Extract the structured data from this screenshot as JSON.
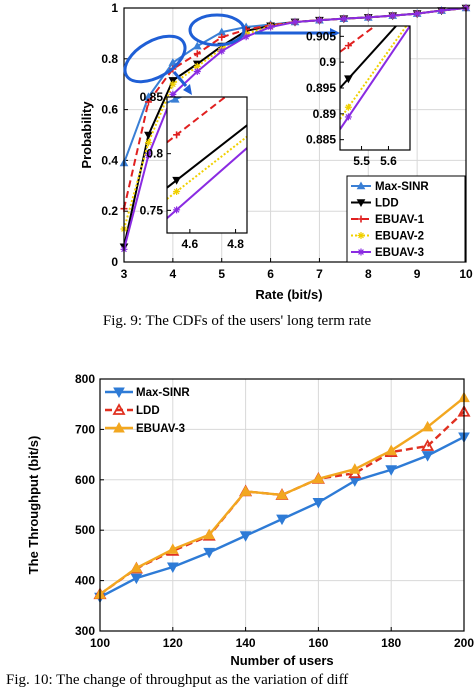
{
  "figure1": {
    "caption": "Fig. 9: The CDFs of the users' long term rate",
    "chart_data": {
      "type": "line",
      "xlabel": "Rate (bit/s)",
      "ylabel": "Probability",
      "xlim": [
        3,
        10
      ],
      "ylim": [
        0,
        1
      ],
      "xticks": [
        "3",
        "4",
        "5",
        "6",
        "7",
        "8",
        "9",
        "10"
      ],
      "yticks": [
        "0",
        "0.2",
        "0.4",
        "0.6",
        "0.8",
        "1"
      ],
      "grid": true,
      "legend_placement": "bottom-right",
      "x": [
        3,
        3.5,
        4,
        4.5,
        5,
        5.5,
        6,
        6.5,
        7,
        7.5,
        8,
        8.5,
        9,
        9.5,
        10
      ],
      "series": [
        {
          "name": "Max-SINR",
          "color": "#3a7fd5",
          "marker": "triangle-up",
          "dash": "solid",
          "values": [
            0.39,
            0.65,
            0.785,
            0.85,
            0.905,
            0.925,
            0.935,
            0.945,
            0.952,
            0.958,
            0.963,
            0.97,
            0.978,
            0.99,
            1.0
          ]
        },
        {
          "name": "LDD",
          "color": "#000000",
          "marker": "triangle-down",
          "dash": "solid",
          "values": [
            0.06,
            0.5,
            0.715,
            0.78,
            0.85,
            0.91,
            0.93,
            0.945,
            0.952,
            0.958,
            0.963,
            0.97,
            0.978,
            0.99,
            1.0
          ]
        },
        {
          "name": "EBUAV-1",
          "color": "#e02020",
          "marker": "plus",
          "dash": "dashed",
          "values": [
            0.21,
            0.63,
            0.76,
            0.82,
            0.885,
            0.915,
            0.932,
            0.945,
            0.952,
            0.958,
            0.963,
            0.97,
            0.978,
            0.99,
            1.0
          ]
        },
        {
          "name": "EBUAV-2",
          "color": "#f0d000",
          "marker": "star",
          "dash": "dotted",
          "values": [
            0.13,
            0.47,
            0.7,
            0.77,
            0.84,
            0.898,
            0.928,
            0.945,
            0.952,
            0.958,
            0.963,
            0.97,
            0.978,
            0.99,
            1.0
          ]
        },
        {
          "name": "EBUAV-3",
          "color": "#8a2be2",
          "marker": "star",
          "dash": "solid",
          "values": [
            0.05,
            0.42,
            0.66,
            0.75,
            0.83,
            0.887,
            0.925,
            0.945,
            0.952,
            0.958,
            0.963,
            0.97,
            0.978,
            0.99,
            1.0
          ]
        }
      ],
      "insets": [
        {
          "xlim": [
            4.5,
            4.85
          ],
          "ylim": [
            0.73,
            0.85
          ],
          "xticks": [
            "4.6",
            "4.8"
          ],
          "xtick_values": [
            4.6,
            4.8
          ],
          "yticks": [
            "0.75",
            "0.8",
            "0.85"
          ],
          "ytick_values": [
            0.75,
            0.8,
            0.85
          ],
          "lines": [
            {
              "series": "Max-SINR",
              "x": [
                4.5,
                4.8
              ],
              "y": [
                0.845,
                0.87
              ]
            },
            {
              "series": "LDD",
              "x": [
                4.5,
                4.85
              ],
              "y": [
                0.77,
                0.825
              ]
            },
            {
              "series": "EBUAV-1",
              "x": [
                4.5,
                4.85
              ],
              "y": [
                0.81,
                0.865
              ]
            },
            {
              "series": "EBUAV-2",
              "x": [
                4.5,
                4.85
              ],
              "y": [
                0.76,
                0.815
              ]
            },
            {
              "series": "EBUAV-3",
              "x": [
                4.5,
                4.85
              ],
              "y": [
                0.743,
                0.805
              ]
            }
          ]
        },
        {
          "xlim": [
            5.42,
            5.68
          ],
          "ylim": [
            0.883,
            0.907
          ],
          "xticks": [
            "5.5",
            "5.6"
          ],
          "xtick_values": [
            5.5,
            5.6
          ],
          "yticks": [
            "0.885",
            "0.89",
            "0.895",
            "0.9",
            "0.905"
          ],
          "ytick_values": [
            0.885,
            0.89,
            0.895,
            0.9,
            0.905
          ],
          "lines": [
            {
              "series": "LDD",
              "x": [
                5.42,
                5.68
              ],
              "y": [
                0.895,
                0.91
              ]
            },
            {
              "series": "EBUAV-1",
              "x": [
                5.42,
                5.68
              ],
              "y": [
                0.902,
                0.912
              ]
            },
            {
              "series": "EBUAV-2",
              "x": [
                5.42,
                5.68
              ],
              "y": [
                0.889,
                0.908
              ]
            },
            {
              "series": "EBUAV-3",
              "x": [
                5.42,
                5.68
              ],
              "y": [
                0.887,
                0.907
              ]
            }
          ]
        }
      ]
    }
  },
  "figure2": {
    "caption": "Fig. 10: The change of throughput as the variation of diff",
    "chart_data": {
      "type": "line",
      "xlabel": "Number of users",
      "ylabel": "The Throughput (bit/s)",
      "xlim": [
        100,
        200
      ],
      "ylim": [
        300,
        800
      ],
      "xticks": [
        "100",
        "120",
        "140",
        "160",
        "180",
        "200"
      ],
      "yticks": [
        "300",
        "400",
        "500",
        "600",
        "700",
        "800"
      ],
      "grid": true,
      "legend_placement": "top-left",
      "x": [
        100,
        110,
        120,
        130,
        140,
        150,
        160,
        170,
        180,
        190,
        200
      ],
      "series": [
        {
          "name": "Max-SINR",
          "color": "#2e7bd6",
          "marker": "triangle-down",
          "dash": "solid",
          "values": [
            367,
            405,
            427,
            456,
            489,
            522,
            555,
            598,
            620,
            648,
            685
          ]
        },
        {
          "name": "LDD",
          "color": "#e03020",
          "marker": "triangle-up",
          "dash": "dashed",
          "values": [
            373,
            424,
            459,
            489,
            577,
            570,
            602,
            613,
            655,
            667,
            735
          ]
        },
        {
          "name": "EBUAV-3",
          "color": "#f2a720",
          "marker": "triangle-up",
          "dash": "solid",
          "values": [
            373,
            425,
            462,
            491,
            577,
            570,
            602,
            621,
            658,
            705,
            763
          ]
        }
      ]
    }
  }
}
